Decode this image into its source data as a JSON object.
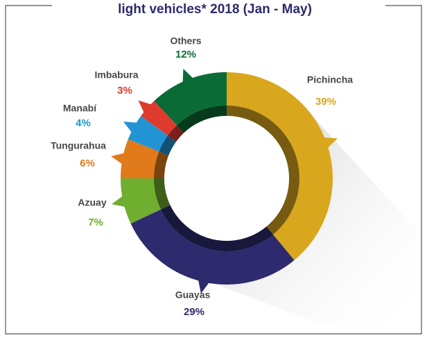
{
  "chart_data": {
    "type": "pie",
    "title": "light vehicles* 2018 (Jan - May)",
    "categories": [
      "Pichincha",
      "Guayas",
      "Azuay",
      "Tungurahua",
      "Manabí",
      "Imbabura",
      "Others"
    ],
    "values": [
      39,
      29,
      7,
      6,
      4,
      3,
      12
    ],
    "value_labels": [
      "39%",
      "29%",
      "7%",
      "6%",
      "4%",
      "3%",
      "12%"
    ],
    "colors": [
      "#d9a71e",
      "#2d2a6e",
      "#6fae2f",
      "#e17a1b",
      "#2394d3",
      "#de3a2e",
      "#0a6b36"
    ]
  }
}
